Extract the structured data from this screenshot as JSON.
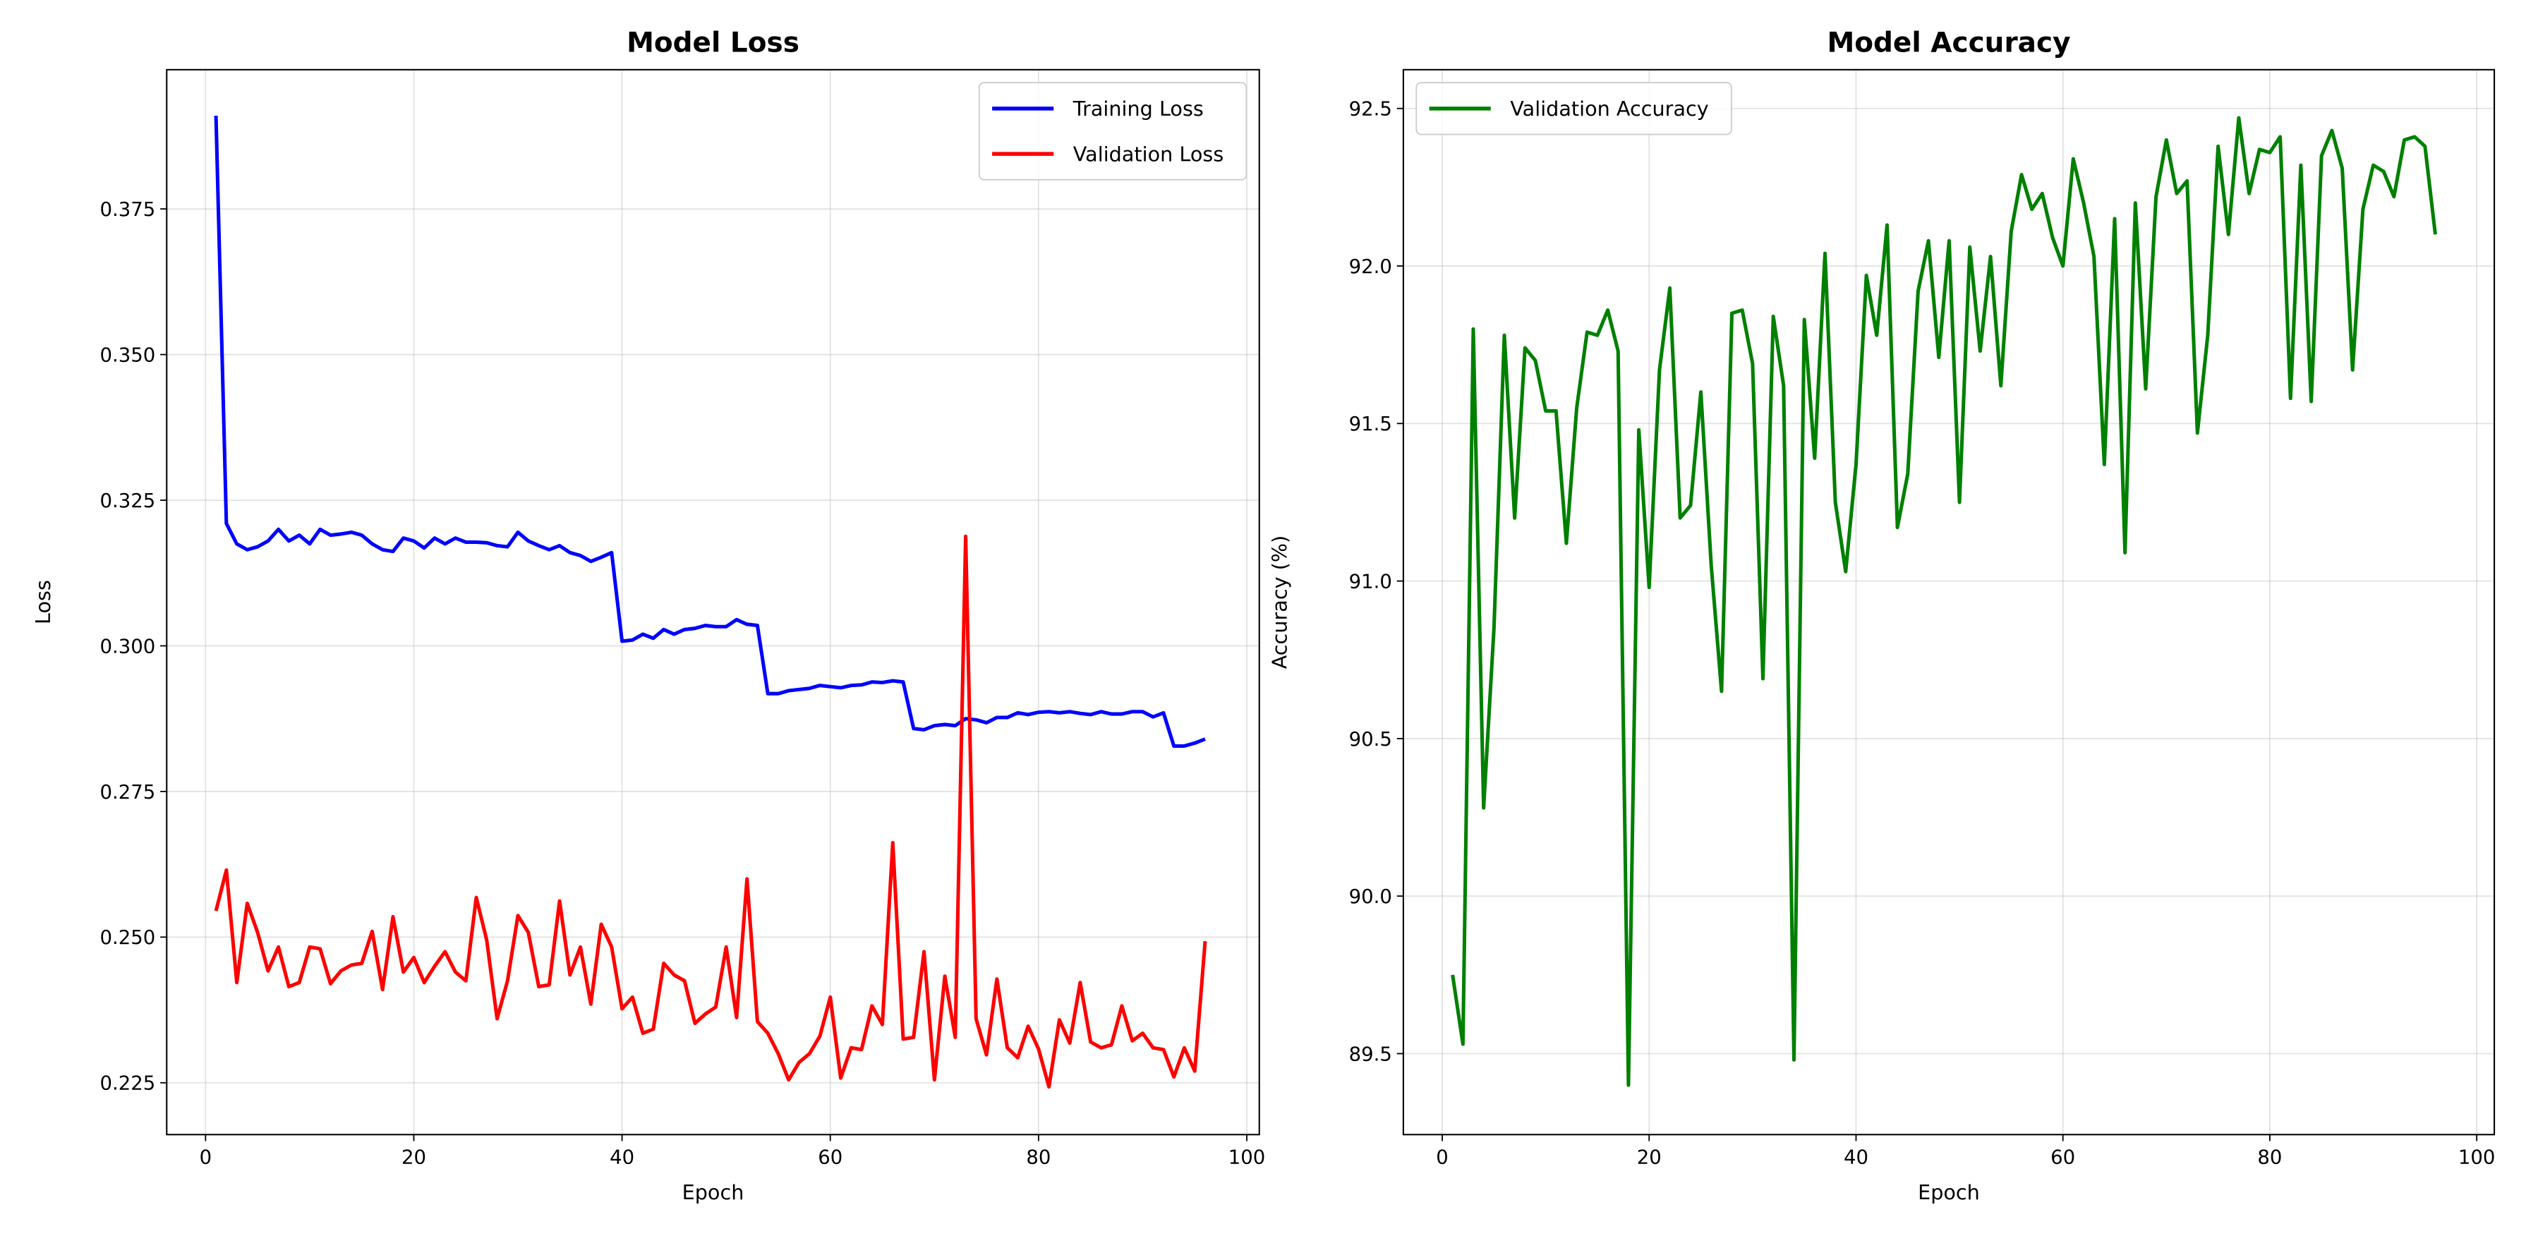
{
  "chart_data": [
    {
      "type": "line",
      "title": "Model Loss",
      "xlabel": "Epoch",
      "ylabel": "Loss",
      "x": [
        1,
        2,
        3,
        4,
        5,
        6,
        7,
        8,
        9,
        10,
        11,
        12,
        13,
        14,
        15,
        16,
        17,
        18,
        19,
        20,
        21,
        22,
        23,
        24,
        25,
        26,
        27,
        28,
        29,
        30,
        31,
        32,
        33,
        34,
        35,
        36,
        37,
        38,
        39,
        40,
        41,
        42,
        43,
        44,
        45,
        46,
        47,
        48,
        49,
        50,
        51,
        52,
        53,
        54,
        55,
        56,
        57,
        58,
        59,
        60,
        61,
        62,
        63,
        64,
        65,
        66,
        67,
        68,
        69,
        70,
        71,
        72,
        73,
        74,
        75,
        76,
        77,
        78,
        79,
        80,
        81,
        82,
        83,
        84,
        85,
        86,
        87,
        88,
        89,
        90,
        91,
        92,
        93,
        94,
        95,
        96
      ],
      "series": [
        {
          "name": "Training Loss",
          "color": "#0000ff",
          "values": [
            0.391,
            0.321,
            0.3175,
            0.3165,
            0.317,
            0.318,
            0.32,
            0.318,
            0.319,
            0.3175,
            0.32,
            0.319,
            0.3192,
            0.3195,
            0.319,
            0.3175,
            0.3165,
            0.3162,
            0.3185,
            0.318,
            0.3168,
            0.3185,
            0.3175,
            0.3185,
            0.3178,
            0.3178,
            0.3177,
            0.3172,
            0.317,
            0.3195,
            0.318,
            0.3172,
            0.3165,
            0.3172,
            0.316,
            0.3155,
            0.3145,
            0.3152,
            0.316,
            0.3008,
            0.301,
            0.302,
            0.3013,
            0.3028,
            0.302,
            0.3028,
            0.303,
            0.3035,
            0.3033,
            0.3033,
            0.3045,
            0.3037,
            0.3035,
            0.2918,
            0.2918,
            0.2923,
            0.2925,
            0.2927,
            0.2932,
            0.293,
            0.2928,
            0.2932,
            0.2933,
            0.2938,
            0.2937,
            0.294,
            0.2938,
            0.2858,
            0.2856,
            0.2863,
            0.2865,
            0.2863,
            0.2875,
            0.2873,
            0.2868,
            0.2877,
            0.2877,
            0.2885,
            0.2882,
            0.2886,
            0.2887,
            0.2885,
            0.2887,
            0.2884,
            0.2882,
            0.2887,
            0.2883,
            0.2883,
            0.2887,
            0.2887,
            0.2878,
            0.2885,
            0.2828,
            0.2828,
            0.2833,
            0.284
          ]
        },
        {
          "name": "Validation Loss",
          "color": "#ff0000",
          "values": [
            0.2545,
            0.2615,
            0.2422,
            0.2558,
            0.2508,
            0.2442,
            0.2483,
            0.2415,
            0.2422,
            0.2483,
            0.248,
            0.242,
            0.2442,
            0.2452,
            0.2455,
            0.251,
            0.241,
            0.2535,
            0.244,
            0.2465,
            0.2422,
            0.245,
            0.2475,
            0.244,
            0.2425,
            0.2568,
            0.2495,
            0.236,
            0.2425,
            0.2537,
            0.2508,
            0.2415,
            0.2418,
            0.2562,
            0.2435,
            0.2483,
            0.2385,
            0.2522,
            0.2483,
            0.2377,
            0.2397,
            0.2335,
            0.2342,
            0.2455,
            0.2435,
            0.2425,
            0.2352,
            0.2368,
            0.238,
            0.2483,
            0.2362,
            0.26,
            0.2355,
            0.2335,
            0.23,
            0.2255,
            0.2285,
            0.23,
            0.233,
            0.2397,
            0.2258,
            0.231,
            0.2307,
            0.2382,
            0.235,
            0.2662,
            0.2325,
            0.2328,
            0.2475,
            0.2255,
            0.2433,
            0.2328,
            0.3188,
            0.236,
            0.2298,
            0.2428,
            0.231,
            0.2293,
            0.2347,
            0.2308,
            0.2243,
            0.2358,
            0.2318,
            0.2422,
            0.232,
            0.231,
            0.2315,
            0.2382,
            0.2322,
            0.2335,
            0.231,
            0.2307,
            0.226,
            0.231,
            0.227,
            0.2493
          ]
        }
      ],
      "xlim": [
        -3.73,
        101.2
      ],
      "ylim": [
        0.2161,
        0.3989
      ],
      "xticks": [
        0,
        20,
        40,
        60,
        80,
        100
      ],
      "yticks": [
        0.225,
        {
          "value": 0.25,
          "label": "0.250"
        },
        0.275,
        {
          "value": 0.3,
          "label": "0.300"
        },
        0.325,
        {
          "value": 0.35,
          "label": "0.350"
        },
        0.375
      ],
      "grid": true,
      "legend": "upper right"
    },
    {
      "type": "line",
      "title": "Model Accuracy",
      "xlabel": "Epoch",
      "ylabel": "Accuracy (%)",
      "x": [
        1,
        2,
        3,
        4,
        5,
        6,
        7,
        8,
        9,
        10,
        11,
        12,
        13,
        14,
        15,
        16,
        17,
        18,
        19,
        20,
        21,
        22,
        23,
        24,
        25,
        26,
        27,
        28,
        29,
        30,
        31,
        32,
        33,
        34,
        35,
        36,
        37,
        38,
        39,
        40,
        41,
        42,
        43,
        44,
        45,
        46,
        47,
        48,
        49,
        50,
        51,
        52,
        53,
        54,
        55,
        56,
        57,
        58,
        59,
        60,
        61,
        62,
        63,
        64,
        65,
        66,
        67,
        68,
        69,
        70,
        71,
        72,
        73,
        74,
        75,
        76,
        77,
        78,
        79,
        80,
        81,
        82,
        83,
        84,
        85,
        86,
        87,
        88,
        89,
        90,
        91,
        92,
        93,
        94,
        95,
        96
      ],
      "series": [
        {
          "name": "Validation Accuracy",
          "color": "#008000",
          "values": [
            89.75,
            89.53,
            91.8,
            90.28,
            90.85,
            91.78,
            91.2,
            91.74,
            91.7,
            91.54,
            91.54,
            91.12,
            91.55,
            91.79,
            91.78,
            91.86,
            91.73,
            89.4,
            91.48,
            90.98,
            91.67,
            91.93,
            91.2,
            91.24,
            91.6,
            91.05,
            90.65,
            91.85,
            91.86,
            91.69,
            90.69,
            91.84,
            91.62,
            89.48,
            91.83,
            91.39,
            92.04,
            91.25,
            91.03,
            91.37,
            91.97,
            91.78,
            92.13,
            91.17,
            91.34,
            91.92,
            92.08,
            91.71,
            92.08,
            91.25,
            92.06,
            91.73,
            92.03,
            91.62,
            92.11,
            92.29,
            92.18,
            92.23,
            92.09,
            92.0,
            92.34,
            92.2,
            92.03,
            91.37,
            92.15,
            91.09,
            92.2,
            91.61,
            92.22,
            92.4,
            92.23,
            92.27,
            91.47,
            91.78,
            92.38,
            92.1,
            92.47,
            92.23,
            92.37,
            92.36,
            92.41,
            91.58,
            92.32,
            91.57,
            92.35,
            92.43,
            92.31,
            91.67,
            92.18,
            92.32,
            92.3,
            92.22,
            92.4,
            92.41,
            92.38,
            92.1
          ]
        }
      ],
      "xlim": [
        -3.76,
        101.7
      ],
      "ylim": [
        89.243,
        92.623
      ],
      "xticks": [
        0,
        20,
        40,
        60,
        80,
        100
      ],
      "yticks": [
        89.5,
        {
          "value": 90,
          "label": "90.0"
        },
        90.5,
        {
          "value": 91,
          "label": "91.0"
        },
        91.5,
        {
          "value": 92,
          "label": "92.0"
        },
        92.5
      ],
      "grid": true,
      "legend": "upper left"
    }
  ]
}
